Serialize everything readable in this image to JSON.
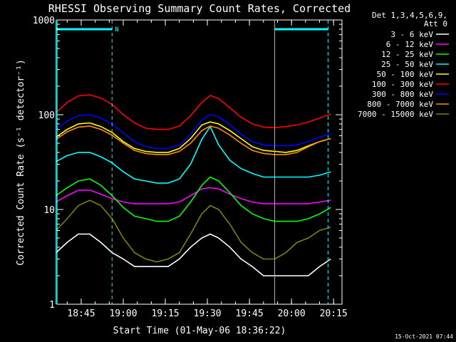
{
  "chart_data": {
    "type": "line",
    "title": "RHESSI Observing Summary Count Rates, Corrected",
    "xlabel": "Start Time (01-May-06 18:36:22)",
    "ylabel": "Corrected Count Rate (s⁻¹ detector⁻¹)",
    "yscale": "log",
    "ylim": [
      1,
      1000
    ],
    "xlim": [
      "18:36:22",
      "20:18:00"
    ],
    "xticks": [
      "18:45",
      "19:00",
      "19:15",
      "19:30",
      "19:45",
      "20:00",
      "20:15"
    ],
    "yticks": [
      "1",
      "10",
      "100",
      "1000"
    ],
    "detector_info": "Det 1,3,4,5,6,9,",
    "attenuator_info": "Att 0",
    "night_marker": "N",
    "footer_date": "15-Oct-2021 07:44",
    "legend_position": "right",
    "x_times": [
      "18:36",
      "18:40",
      "18:44",
      "18:48",
      "18:52",
      "18:56",
      "19:00",
      "19:04",
      "19:08",
      "19:12",
      "19:16",
      "19:20",
      "19:24",
      "19:28",
      "19:31",
      "19:34",
      "19:38",
      "19:42",
      "19:46",
      "19:50",
      "19:54",
      "19:58",
      "20:02",
      "20:06",
      "20:10",
      "20:14"
    ],
    "series": [
      {
        "name": "3 - 6 keV",
        "color": "#ffffff",
        "values": [
          3.5,
          4.5,
          5.5,
          5.5,
          4.5,
          3.5,
          3,
          2.5,
          2.5,
          2.5,
          2.5,
          3,
          4,
          5,
          5.5,
          5,
          4,
          3,
          2.5,
          2,
          2,
          2,
          2,
          2,
          2.5,
          3
        ]
      },
      {
        "name": "6 - 12 keV",
        "color": "#ff00ff",
        "values": [
          12,
          14,
          16,
          16,
          14.5,
          13,
          12,
          11.5,
          11.5,
          11.5,
          11.5,
          12,
          14,
          16.5,
          17,
          16.5,
          14.5,
          13,
          12,
          11.5,
          11.5,
          11.5,
          11.5,
          11.5,
          12,
          12.5
        ]
      },
      {
        "name": "12 - 25 keV",
        "color": "#00ff00",
        "values": [
          14,
          17,
          20,
          21,
          18,
          14,
          10.5,
          8.5,
          8,
          7.5,
          7.5,
          8.5,
          12,
          18,
          22,
          20,
          15,
          11,
          9,
          8,
          7.5,
          7.5,
          7.5,
          8,
          9,
          10.5
        ]
      },
      {
        "name": "25 - 50 keV",
        "color": "#00ffff",
        "values": [
          32,
          37,
          40,
          40,
          36,
          31,
          25,
          21,
          20,
          19,
          19,
          21,
          30,
          55,
          75,
          48,
          33,
          27,
          24,
          22,
          22,
          22,
          22,
          22,
          23,
          25
        ]
      },
      {
        "name": "50 - 100 keV",
        "color": "#ffff00",
        "values": [
          58,
          70,
          80,
          82,
          75,
          65,
          52,
          44,
          41,
          40,
          40,
          44,
          56,
          78,
          84,
          80,
          68,
          56,
          46,
          42,
          41,
          40,
          42,
          47,
          52,
          56
        ]
      },
      {
        "name": "100 - 300 keV",
        "color": "#ff0000",
        "values": [
          105,
          135,
          158,
          162,
          150,
          128,
          100,
          82,
          72,
          70,
          70,
          76,
          98,
          135,
          160,
          148,
          118,
          94,
          80,
          74,
          73,
          75,
          78,
          84,
          92,
          102
        ]
      },
      {
        "name": "300 - 800 keV",
        "color": "#0000ff",
        "values": [
          70,
          86,
          98,
          100,
          92,
          80,
          64,
          52,
          46,
          44,
          44,
          48,
          62,
          88,
          100,
          95,
          78,
          62,
          52,
          48,
          47,
          47,
          48,
          52,
          58,
          63
        ]
      },
      {
        "name": "800 - 7000 keV",
        "color": "#ff8c00",
        "values": [
          55,
          66,
          74,
          76,
          70,
          61,
          50,
          42,
          39,
          38,
          38,
          41,
          50,
          68,
          76,
          72,
          61,
          50,
          42,
          39,
          38,
          38,
          40,
          46,
          52,
          56
        ]
      },
      {
        "name": "7000 - 15000 keV",
        "color": "#808000",
        "values": [
          6,
          8,
          11,
          12.5,
          11,
          8,
          5,
          3.5,
          3,
          2.8,
          3,
          3.5,
          5.5,
          9,
          11,
          10,
          7,
          4.5,
          3.5,
          3,
          3,
          3.5,
          4.5,
          5,
          6,
          6.5
        ]
      }
    ],
    "vertical_markers": [
      "18:36",
      "18:56",
      "19:54",
      "20:13"
    ]
  }
}
